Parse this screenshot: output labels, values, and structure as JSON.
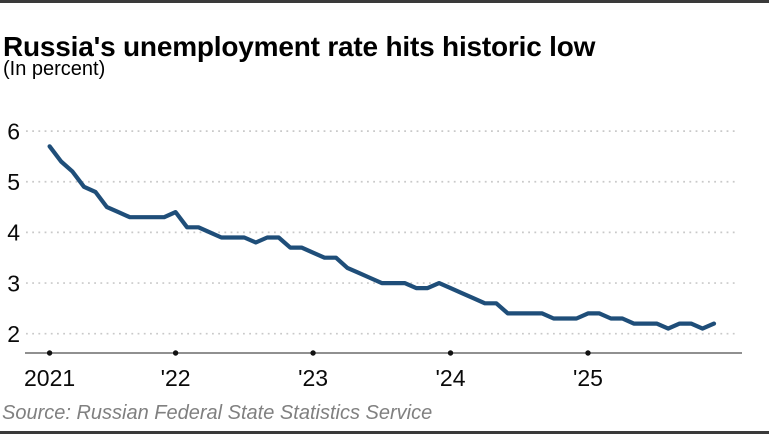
{
  "header": {
    "title": "Russia's unemployment rate hits historic low",
    "subtitle": "(In percent)"
  },
  "footer": {
    "source": "Source: Russian Federal State Statistics Service"
  },
  "chart_data": {
    "type": "line",
    "title": "Russia's unemployment rate hits historic low",
    "subtitle": "(In percent)",
    "ylabel": "In percent",
    "xlabel": "",
    "x_unit": "month",
    "series": [
      {
        "name": "Russia unemployment rate (%)",
        "values": [
          5.7,
          5.4,
          5.2,
          4.9,
          4.8,
          4.5,
          4.4,
          4.3,
          4.3,
          4.3,
          4.3,
          4.4,
          4.1,
          4.1,
          4.0,
          3.9,
          3.9,
          3.9,
          3.8,
          3.9,
          3.9,
          3.7,
          3.7,
          3.6,
          3.5,
          3.5,
          3.3,
          3.2,
          3.1,
          3.0,
          3.0,
          3.0,
          2.9,
          2.9,
          3.0,
          2.9,
          2.8,
          2.7,
          2.6,
          2.6,
          2.4,
          2.4,
          2.4,
          2.4,
          2.3,
          2.3,
          2.3,
          2.4,
          2.4,
          2.3,
          2.3,
          2.2,
          2.2,
          2.2,
          2.1,
          2.2,
          2.2,
          2.1,
          2.2
        ]
      }
    ],
    "y_ticks": [
      6,
      5,
      4,
      3,
      2
    ],
    "ylim": [
      2,
      6
    ],
    "x_ticks": [
      {
        "label": "2021",
        "month_index": 0
      },
      {
        "label": "'22",
        "month_index": 11
      },
      {
        "label": "'23",
        "month_index": 23
      },
      {
        "label": "'24",
        "month_index": 35
      },
      {
        "label": "'25",
        "month_index": 47
      }
    ],
    "grid": "dotted horizontal gridlines at each y tick",
    "legend": "none",
    "colors": {
      "line": "#1f4e79",
      "grid": "#c9c9c9",
      "axis": "#4d4d4d",
      "tick_dot": "#111111",
      "label": "#0a0a0a",
      "source_text": "#808080",
      "border_bars": "#3a3a3a"
    }
  }
}
